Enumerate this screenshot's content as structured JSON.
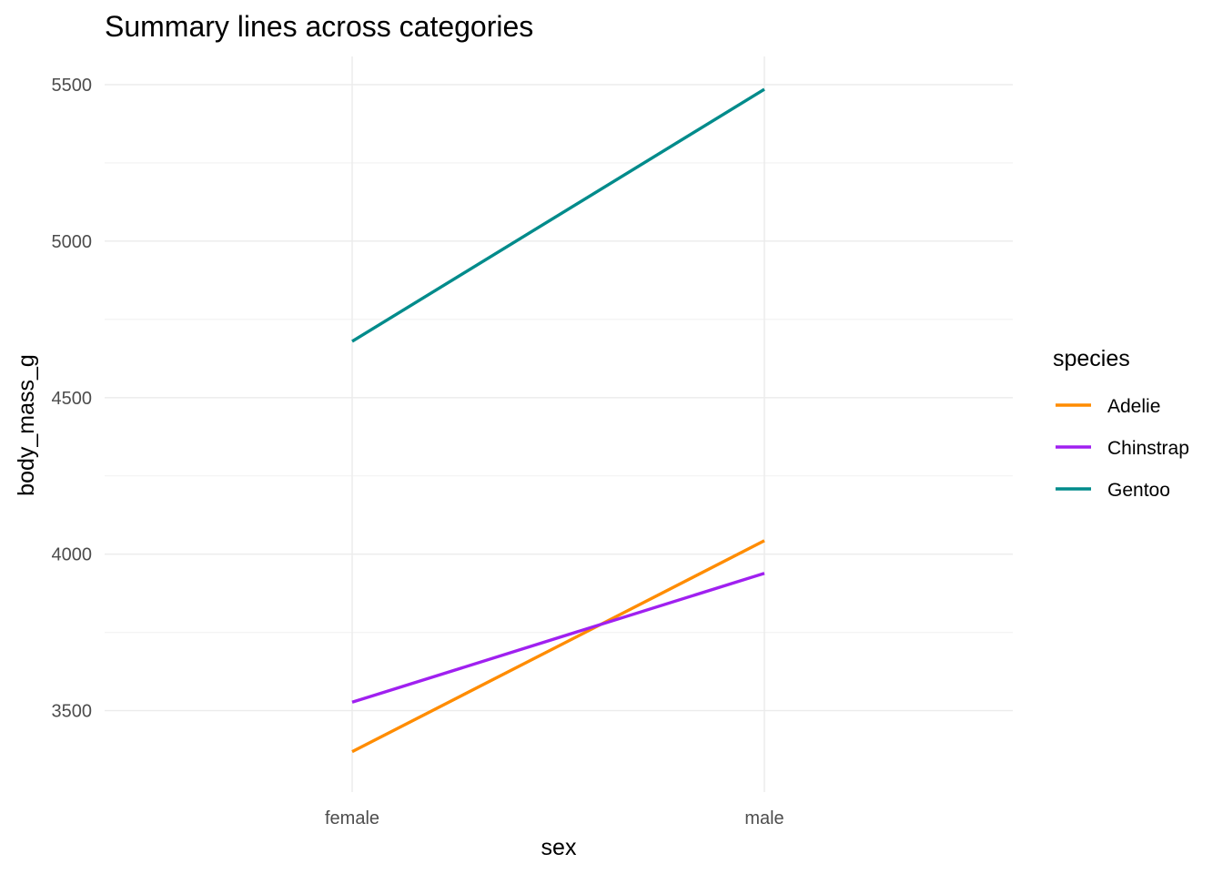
{
  "chart_data": {
    "type": "line",
    "title": "Summary lines across categories",
    "xlabel": "sex",
    "ylabel": "body_mass_g",
    "categories": [
      "female",
      "male"
    ],
    "ylim": [
      3240,
      5590
    ],
    "yticks": [
      3500,
      4000,
      4500,
      5000,
      5500
    ],
    "yticks_minor": [
      3750,
      4250,
      4750,
      5250
    ],
    "grid": true,
    "legend": {
      "title": "species",
      "position": "right"
    },
    "series": [
      {
        "name": "Adelie",
        "color": "#ff8c00",
        "values": [
          3369,
          4043
        ]
      },
      {
        "name": "Chinstrap",
        "color": "#a020f0",
        "values": [
          3527,
          3939
        ]
      },
      {
        "name": "Gentoo",
        "color": "#008b8b",
        "values": [
          4680,
          5485
        ]
      }
    ]
  }
}
